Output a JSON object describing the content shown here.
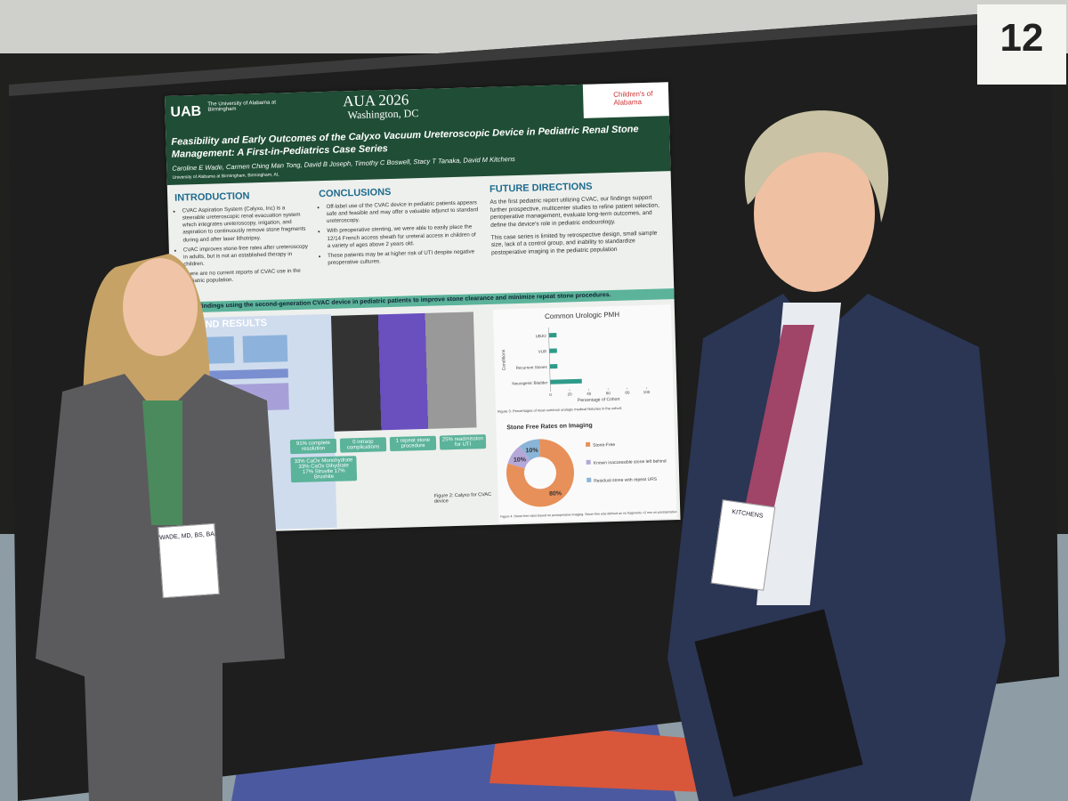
{
  "board_number": "12",
  "poster": {
    "institution_short": "UAB",
    "institution": "The University of Alabama at Birmingham",
    "conference": "AUA 2026",
    "location": "Washington, DC",
    "partner": "Children's of Alabama",
    "title": "Feasibility and Early Outcomes of the Calyxo Vacuum Ureteroscopic Device in Pediatric Renal Stone Management: A First-in-Pediatrics Case Series",
    "authors": "Caroline E Wade, Carmen Ching Man Tong, David B Joseph, Timothy C Boswell, Stacy T Tanaka, David M Kitchens",
    "affiliation": "University of Alabama at Birmingham, Birmingham, AL",
    "introduction": {
      "heading": "INTRODUCTION",
      "bullets": [
        "CVAC Aspiration System (Calyxo, Inc) is a steerable ureteroscopic renal evacuation system which integrates ureteroscopy, irrigation, and aspiration to continuously remove stone fragments during and after laser lithotripsy.",
        "CVAC improves stone-free rates after ureteroscopy in adults, but is not an established therapy in children.",
        "There are no current reports of CVAC use in the pediatric population."
      ]
    },
    "conclusions": {
      "heading": "CONCLUSIONS",
      "bullets": [
        "Off-label use of the CVAC device in pediatric patients appears safe and feasible and may offer a valuable adjunct to standard ureteroscopy.",
        "With preoperative stenting, we were able to easily place the 12/14 French access sheath for ureteral access in children of a variety of ages above 2 years old.",
        "These patients may be at higher risk of UTI despite negative preoperative cultures."
      ]
    },
    "future_directions": {
      "heading": "FUTURE DIRECTIONS",
      "paragraphs": [
        "As the first pediatric report utilizing CVAC, our findings support further prospective, multicenter studies to refine patient selection, perioperative management, evaluate long-term outcomes, and define the device's role in pediatric endourology.",
        "This case series is limited by retrospective design, small sample size, lack of a control group, and inability to standardize postoperative imaging in the pediatric population"
      ]
    },
    "objective_banner": "port our findings using the second-generation CVAC device in pediatric patients to improve stone clearance and minimize repeat stone procedures.",
    "methods_heading": "ODS AND RESULTS",
    "outcomes": [
      "91% complete resolution",
      "0 intraop complications",
      "1 repeat stone procedure",
      "25% readmission for UTI",
      "33% CaOx Monohydrate 33% CaOx Dihydrate 17% Struvite 17% Brushite"
    ],
    "figure_2_caption": "Figure 2: Calyxo for CVAC device",
    "bar_chart": {
      "title": "Common Urologic PMH",
      "categories": [
        "UBJO",
        "VUR",
        "Recurrent Stones",
        "Neurogenic Bladder"
      ],
      "values": [
        8,
        8,
        8,
        33
      ],
      "color": "#2e9b8a",
      "xlim": [
        0,
        100
      ],
      "xticks": [
        0,
        20,
        40,
        60,
        80,
        100
      ],
      "x_label": "Percentage of Cohort",
      "y_label": "Conditions",
      "caption": "Figure 3: Percentages of most common urologic medical histories in the cohort."
    },
    "pie_chart": {
      "title": "Stone Free Rates on Imaging",
      "categories": [
        "Stone-Free",
        "Known inaccessible stone left behind",
        "Residual stone with repeat URS"
      ],
      "values": [
        80,
        10,
        10
      ],
      "value_labels": [
        "80%",
        "10%",
        "10%"
      ],
      "colors": [
        "#e8905a",
        "#b3a8d8",
        "#8ab4d8"
      ],
      "caption": "Figure 4: Stone-free rates based on postoperative imaging. Stone-free was defined as no fragments >2 mm on postoperative imaging."
    }
  },
  "badges": [
    "WADE, MD, BS, BA",
    "KITCHENS"
  ]
}
